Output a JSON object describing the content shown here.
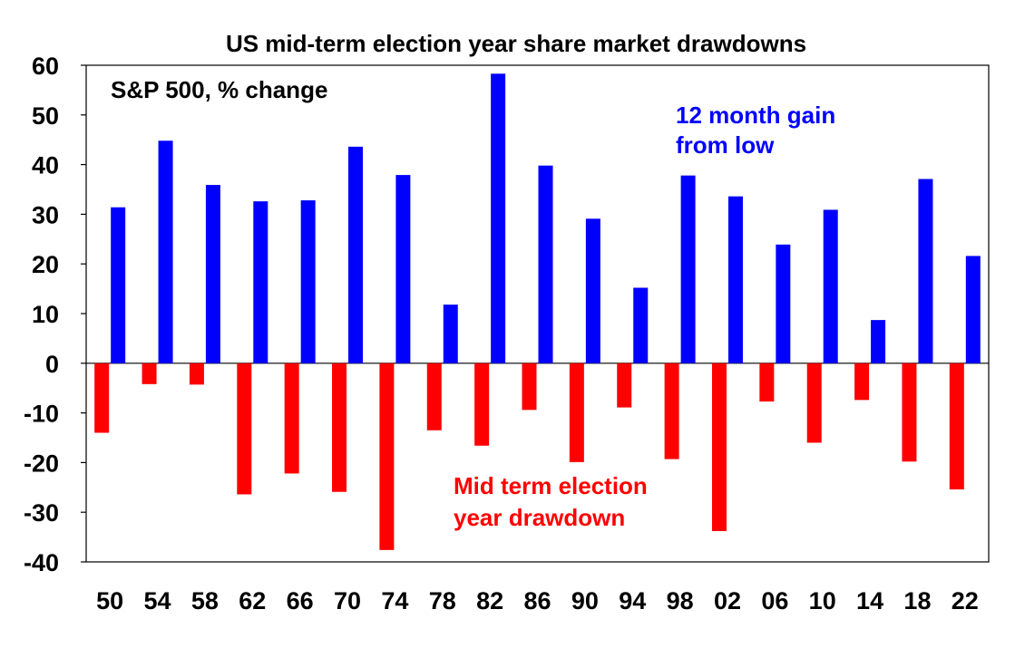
{
  "chart_data": {
    "type": "bar",
    "title": "US mid-term election year share market drawdowns",
    "subtitle": "S&P 500, % change",
    "xlabel": "",
    "ylabel": "",
    "ylim": [
      -40,
      60
    ],
    "y_ticks": [
      "60",
      "50",
      "40",
      "30",
      "20",
      "10",
      "0",
      "-10",
      "-20",
      "-30",
      "-40"
    ],
    "y_tick_values": [
      60,
      50,
      40,
      30,
      20,
      10,
      0,
      -10,
      -20,
      -30,
      -40
    ],
    "categories": [
      "50",
      "54",
      "58",
      "62",
      "66",
      "70",
      "74",
      "78",
      "82",
      "86",
      "90",
      "94",
      "98",
      "02",
      "06",
      "10",
      "14",
      "18",
      "22"
    ],
    "series": [
      {
        "name": "Mid term election year drawdown",
        "color": "#ff0000",
        "values": [
          -14,
          -4.2,
          -4.3,
          -26.4,
          -22.2,
          -25.9,
          -37.6,
          -13.5,
          -16.6,
          -9.4,
          -19.9,
          -8.9,
          -19.3,
          -33.8,
          -7.7,
          -16,
          -7.4,
          -19.8,
          -25.4
        ]
      },
      {
        "name": "12 month gain from low",
        "color": "#0000ff",
        "values": [
          31.4,
          44.8,
          35.9,
          32.6,
          32.8,
          43.6,
          37.9,
          11.8,
          58.3,
          39.8,
          29.1,
          15.2,
          37.8,
          33.6,
          23.9,
          30.9,
          8.7,
          37.1,
          21.6
        ]
      }
    ],
    "annotations": {
      "gain_line1": "12 month gain",
      "gain_line2": "from low",
      "drawdown_line1": "Mid term election",
      "drawdown_line2": "year drawdown"
    },
    "colors": {
      "gain": "#0000ff",
      "drawdown": "#ff0000",
      "axis": "#000000"
    }
  }
}
